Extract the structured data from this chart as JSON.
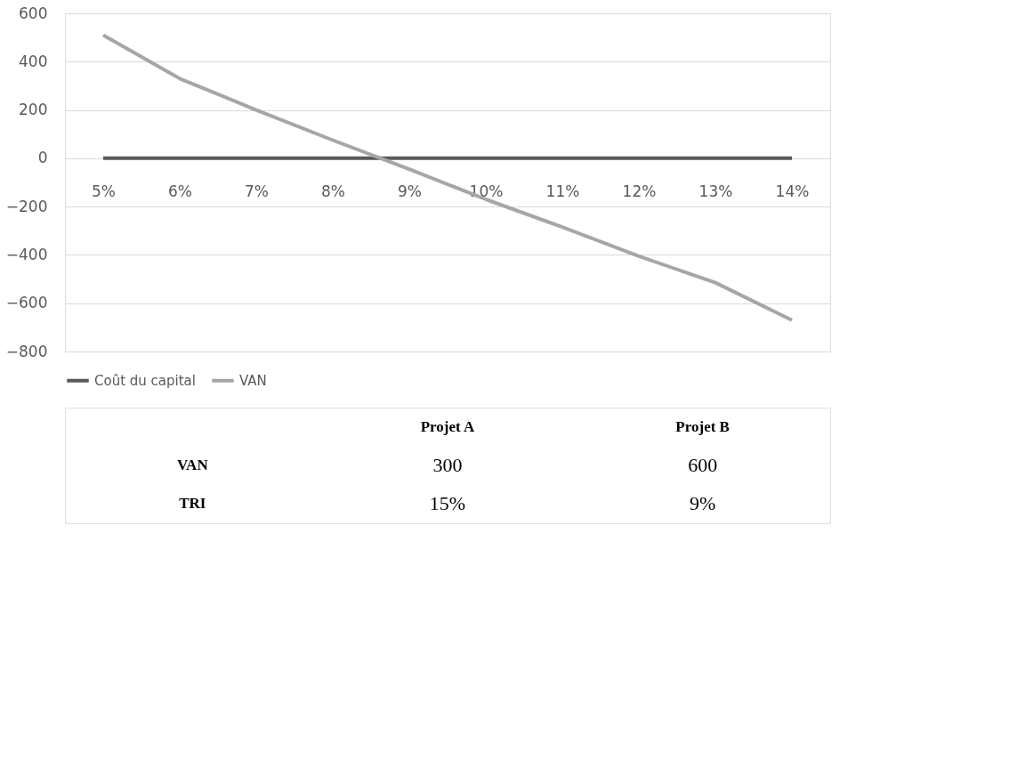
{
  "chart_data": {
    "type": "line",
    "categories": [
      "5%",
      "6%",
      "7%",
      "8%",
      "9%",
      "10%",
      "11%",
      "12%",
      "13%",
      "14%"
    ],
    "series": [
      {
        "name": "Coût du capital",
        "color": "#595959",
        "values": [
          0,
          0,
          0,
          0,
          0,
          0,
          0,
          0,
          0,
          0
        ]
      },
      {
        "name": "VAN",
        "color": "#a6a6a6",
        "values": [
          510,
          330,
          200,
          75,
          -45,
          -170,
          -285,
          -405,
          -515,
          -670
        ]
      }
    ],
    "ylim": [
      -800,
      600
    ],
    "yticks": [
      -800,
      -600,
      -400,
      -200,
      0,
      200,
      400,
      600
    ],
    "grid": "y",
    "legend": "bottom",
    "marker": "none",
    "line_style": "solid",
    "annotations": [
      "Projet A",
      "Projet B",
      "VAN",
      "300",
      "600",
      "TRI",
      "15%",
      "9%"
    ]
  }
}
